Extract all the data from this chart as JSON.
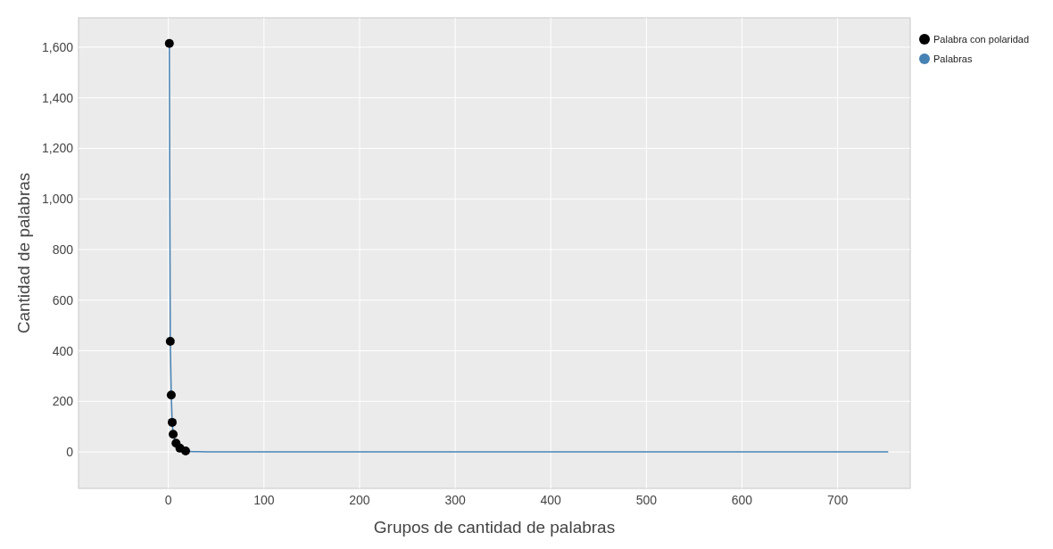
{
  "chart_data": {
    "type": "line",
    "xlabel": "Grupos de cantidad de palabras",
    "ylabel": "Cantidad de palabras",
    "xlim": [
      -94,
      776
    ],
    "ylim": [
      -144,
      1716
    ],
    "xticks": [
      0,
      100,
      200,
      300,
      400,
      500,
      600,
      700
    ],
    "yticks": [
      0,
      200,
      400,
      600,
      800,
      {
        "value": 1000,
        "label": "1,000"
      },
      {
        "value": 1200,
        "label": "1,200"
      },
      {
        "value": 1400,
        "label": "1,400"
      },
      {
        "value": 1600,
        "label": "1,600"
      }
    ],
    "grid": true,
    "legend": "top right",
    "series": [
      {
        "name": "Palabra con polaridad",
        "type": "scatter",
        "marker": "circle",
        "color": "#000000",
        "x": [
          1,
          2,
          3,
          4,
          5,
          8,
          12,
          18
        ],
        "values": [
          1615,
          437,
          225,
          117,
          70,
          35,
          15,
          4
        ]
      },
      {
        "name": "Palabras",
        "color": "#4682b4",
        "x": [
          1,
          2,
          3,
          4,
          5,
          8,
          12,
          18,
          25,
          30,
          40,
          60,
          100,
          200,
          400,
          600,
          753
        ],
        "values": [
          1615,
          437,
          225,
          117,
          70,
          35,
          15,
          4,
          1,
          1,
          0,
          0,
          0,
          0,
          0,
          0,
          0
        ]
      }
    ]
  }
}
